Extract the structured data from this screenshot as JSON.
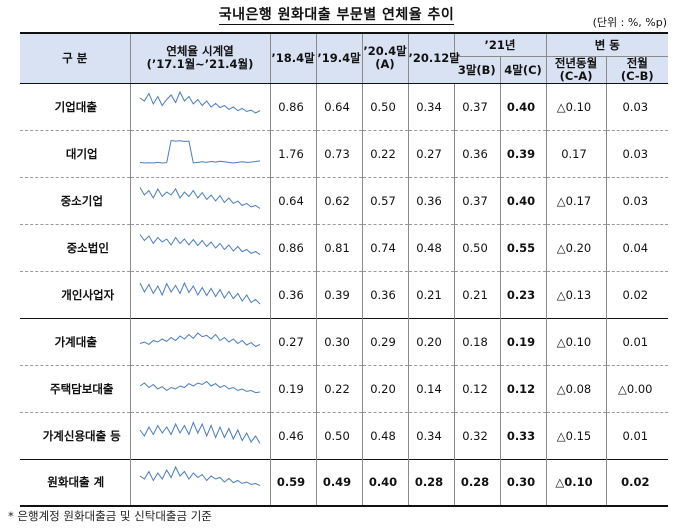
{
  "title": "국내은행 원화대출 부문별 연체율 추이",
  "unit": "(단위 : %, %p)",
  "header": {
    "category": "구 분",
    "series_title": "연체율 시계열",
    "series_period": "(’17.1월~’21.4월)",
    "col_18": "’18.4말",
    "col_19": "’19.4말",
    "col_20_4_a": "’20.4말",
    "col_20_4_b": "(A)",
    "col_20_12": "’20.12말",
    "col_21": "’21년",
    "col_21_3": "3말(B)",
    "col_21_4": "4말(C)",
    "change": "변 동",
    "yoy_a": "전년동월",
    "yoy_b": "(C-A)",
    "mom_a": "전월",
    "mom_b": "(C-B)"
  },
  "rows": [
    {
      "name": "기업대출",
      "level": 0,
      "v18": "0.86",
      "v19": "0.64",
      "v20": "0.50",
      "v2012": "0.34",
      "v213": "0.37",
      "v214": "0.40",
      "yoy": "△0.10",
      "mom": "0.03",
      "spark": [
        0.8,
        0.7,
        0.95,
        0.6,
        0.85,
        0.55,
        0.75,
        0.9,
        0.65,
        1.0,
        0.7,
        0.85,
        0.6,
        0.75,
        0.55,
        0.7,
        0.5,
        0.62,
        0.48,
        0.55,
        0.42,
        0.5,
        0.38,
        0.45,
        0.35,
        0.4,
        0.3,
        0.38
      ]
    },
    {
      "name": "대기업",
      "level": 1,
      "v18": "1.76",
      "v19": "0.73",
      "v20": "0.22",
      "v2012": "0.27",
      "v213": "0.36",
      "v214": "0.39",
      "yoy": "0.17",
      "mom": "0.03",
      "spark": [
        0.22,
        0.2,
        0.21,
        0.2,
        0.22,
        0.2,
        0.21,
        0.95,
        0.93,
        0.94,
        0.92,
        0.93,
        0.2,
        0.22,
        0.24,
        0.22,
        0.25,
        0.23,
        0.26,
        0.24,
        0.22,
        0.2,
        0.22,
        0.24,
        0.22,
        0.23,
        0.25,
        0.27
      ]
    },
    {
      "name": "중소기업",
      "level": 1,
      "v18": "0.64",
      "v19": "0.62",
      "v20": "0.57",
      "v2012": "0.36",
      "v213": "0.37",
      "v214": "0.40",
      "yoy": "△0.17",
      "mom": "0.03",
      "spark": [
        0.95,
        0.7,
        0.85,
        0.6,
        0.9,
        0.65,
        0.8,
        0.7,
        0.9,
        0.6,
        0.8,
        0.65,
        0.85,
        0.6,
        0.78,
        0.55,
        0.7,
        0.5,
        0.68,
        0.45,
        0.6,
        0.42,
        0.5,
        0.35,
        0.42,
        0.3,
        0.35,
        0.25
      ]
    },
    {
      "name": "중소법인",
      "level": 2,
      "v18": "0.86",
      "v19": "0.81",
      "v20": "0.74",
      "v2012": "0.48",
      "v213": "0.50",
      "v214": "0.55",
      "yoy": "△0.20",
      "mom": "0.04",
      "spark": [
        0.95,
        0.75,
        0.9,
        0.65,
        0.85,
        0.7,
        0.8,
        0.6,
        0.85,
        0.65,
        0.8,
        0.6,
        0.78,
        0.58,
        0.75,
        0.55,
        0.7,
        0.5,
        0.65,
        0.45,
        0.6,
        0.4,
        0.55,
        0.38,
        0.45,
        0.32,
        0.38,
        0.28
      ]
    },
    {
      "name": "개인사업자",
      "level": 2,
      "v18": "0.36",
      "v19": "0.39",
      "v20": "0.36",
      "v2012": "0.21",
      "v213": "0.21",
      "v214": "0.23",
      "yoy": "△0.13",
      "mom": "0.02",
      "spark": [
        0.9,
        0.6,
        0.85,
        0.55,
        0.8,
        0.5,
        0.88,
        0.6,
        0.82,
        0.55,
        0.9,
        0.58,
        0.8,
        0.5,
        0.75,
        0.48,
        0.72,
        0.45,
        0.68,
        0.4,
        0.62,
        0.38,
        0.55,
        0.3,
        0.5,
        0.25,
        0.35,
        0.2
      ]
    },
    {
      "name": "가계대출",
      "level": 0,
      "v18": "0.27",
      "v19": "0.30",
      "v20": "0.29",
      "v2012": "0.20",
      "v213": "0.18",
      "v214": "0.19",
      "yoy": "△0.10",
      "mom": "0.01",
      "spark": [
        0.45,
        0.5,
        0.42,
        0.55,
        0.5,
        0.6,
        0.52,
        0.65,
        0.55,
        0.7,
        0.6,
        0.75,
        0.62,
        0.8,
        0.68,
        0.72,
        0.6,
        0.75,
        0.55,
        0.65,
        0.5,
        0.6,
        0.45,
        0.55,
        0.4,
        0.48,
        0.35,
        0.42
      ]
    },
    {
      "name": "주택담보대출",
      "level": 1,
      "v18": "0.19",
      "v19": "0.22",
      "v20": "0.20",
      "v2012": "0.14",
      "v213": "0.12",
      "v214": "0.12",
      "yoy": "△0.08",
      "mom": "△0.00",
      "spark": [
        0.6,
        0.7,
        0.55,
        0.65,
        0.5,
        0.58,
        0.45,
        0.55,
        0.5,
        0.6,
        0.55,
        0.68,
        0.6,
        0.7,
        0.65,
        0.75,
        0.6,
        0.68,
        0.55,
        0.62,
        0.5,
        0.55,
        0.45,
        0.5,
        0.42,
        0.45,
        0.38,
        0.4
      ]
    },
    {
      "name": "가계신용대출 등",
      "level": 1,
      "v18": "0.46",
      "v19": "0.50",
      "v20": "0.48",
      "v2012": "0.34",
      "v213": "0.32",
      "v214": "0.33",
      "yoy": "△0.15",
      "mom": "0.01",
      "spark": [
        0.7,
        0.5,
        0.8,
        0.55,
        0.85,
        0.6,
        0.8,
        0.55,
        0.9,
        0.6,
        0.85,
        0.55,
        0.95,
        0.6,
        0.9,
        0.5,
        0.85,
        0.45,
        0.8,
        0.45,
        0.75,
        0.4,
        0.7,
        0.35,
        0.6,
        0.3,
        0.5,
        0.25
      ]
    },
    {
      "name": "원화대출 계",
      "level": 0,
      "v18": "0.59",
      "v19": "0.49",
      "v20": "0.40",
      "v2012": "0.28",
      "v213": "0.28",
      "v214": "0.30",
      "yoy": "△0.10",
      "mom": "0.02",
      "spark": [
        0.7,
        0.6,
        0.85,
        0.55,
        0.8,
        0.6,
        0.9,
        0.65,
        1.0,
        0.7,
        0.85,
        0.6,
        0.8,
        0.65,
        0.75,
        0.55,
        0.7,
        0.6,
        0.65,
        0.5,
        0.62,
        0.48,
        0.55,
        0.45,
        0.5,
        0.42,
        0.45,
        0.38
      ]
    }
  ],
  "footnote": "* 은행계정 원화대출금 및 신탁대출금 기준",
  "colors": {
    "header_bg": "#d9e2f3",
    "sparkline": "#4a7cc0",
    "rule": "#111111"
  }
}
